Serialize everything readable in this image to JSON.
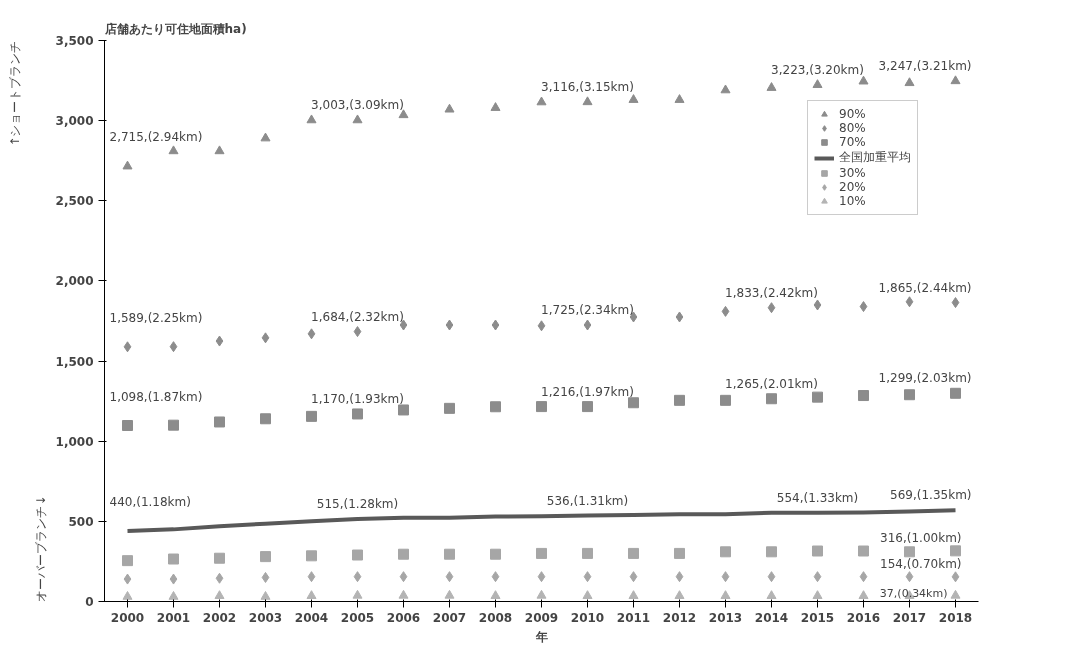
{
  "chart_data": {
    "type": "scatter",
    "title": "店舗あたり可住地面積ha)",
    "xlabel": "年",
    "x": [
      2000,
      2001,
      2002,
      2003,
      2004,
      2005,
      2006,
      2007,
      2008,
      2009,
      2010,
      2011,
      2012,
      2013,
      2014,
      2015,
      2016,
      2017,
      2018
    ],
    "xlim": [
      1999.5,
      2018.5
    ],
    "xticks": [
      2000,
      2001,
      2002,
      2003,
      2004,
      2005,
      2006,
      2007,
      2008,
      2009,
      2010,
      2011,
      2012,
      2013,
      2014,
      2015,
      2016,
      2017,
      2018
    ],
    "ylim": [
      0,
      3500
    ],
    "yticks": [
      0,
      500,
      {
        "value": 1000,
        "label": "1,000"
      },
      {
        "value": 1500,
        "label": "1,500"
      },
      {
        "value": 2000,
        "label": "2,000"
      },
      {
        "value": 2500,
        "label": "2,500"
      },
      {
        "value": 3000,
        "label": "3,000"
      },
      {
        "value": 3500,
        "label": "3,500"
      }
    ],
    "grid": false,
    "legend": "top right",
    "series": [
      {
        "name": "90%",
        "color": "#8c8c8c",
        "marker": "triangle",
        "values": [
          2715,
          2810,
          2810,
          2890,
          3003,
          3003,
          3035,
          3070,
          3080,
          3115,
          3116,
          3130,
          3130,
          3190,
          3205,
          3223,
          3245,
          3235,
          3247
        ]
      },
      {
        "name": "80%",
        "color": "#8c8c8c",
        "marker": "diamond",
        "values": [
          1589,
          1590,
          1625,
          1645,
          1670,
          1684,
          1725,
          1725,
          1725,
          1720,
          1725,
          1775,
          1775,
          1810,
          1833,
          1850,
          1840,
          1870,
          1865
        ]
      },
      {
        "name": "70%",
        "color": "#8c8c8c",
        "marker": "square",
        "values": [
          1098,
          1100,
          1120,
          1140,
          1155,
          1170,
          1195,
          1205,
          1215,
          1216,
          1216,
          1240,
          1255,
          1255,
          1265,
          1275,
          1285,
          1290,
          1299
        ]
      },
      {
        "name": "全国加重平均",
        "color": "#595959",
        "type": "line",
        "values": [
          440,
          450,
          470,
          485,
          500,
          515,
          522,
          522,
          530,
          532,
          536,
          540,
          545,
          545,
          554,
          554,
          555,
          562,
          569
        ]
      },
      {
        "name": "30%",
        "color": "#a6a6a6",
        "marker": "square",
        "values": [
          255,
          265,
          270,
          280,
          285,
          290,
          295,
          295,
          295,
          300,
          300,
          300,
          300,
          310,
          310,
          315,
          315,
          310,
          316
        ]
      },
      {
        "name": "20%",
        "color": "#a6a6a6",
        "marker": "diamond",
        "values": [
          140,
          140,
          145,
          150,
          155,
          155,
          155,
          155,
          155,
          155,
          155,
          155,
          155,
          155,
          155,
          155,
          155,
          155,
          154
        ]
      },
      {
        "name": "10%",
        "color": "#b4b4b4",
        "marker": "triangle",
        "values": [
          30,
          30,
          35,
          30,
          35,
          37,
          37,
          37,
          35,
          37,
          35,
          35,
          35,
          35,
          35,
          35,
          35,
          35,
          37
        ]
      }
    ],
    "annotations": [
      {
        "text": "2,715,(2.94km)",
        "x": 2000,
        "y": 2715
      },
      {
        "text": "3,003,(3.09km)",
        "x": 2005,
        "y": 3003
      },
      {
        "text": "3,116,(3.15km)",
        "x": 2010,
        "y": 3116
      },
      {
        "text": "3,223,(3.20km)",
        "x": 2015,
        "y": 3223
      },
      {
        "text": "3,247,(3.21km)",
        "x": 2018,
        "y": 3247
      },
      {
        "text": "1,589,(2.25km)",
        "x": 2000,
        "y": 1589
      },
      {
        "text": "1,684,(2.32km)",
        "x": 2005,
        "y": 1684
      },
      {
        "text": "1,725,(2.34km)",
        "x": 2010,
        "y": 1725
      },
      {
        "text": "1,833,(2.42km)",
        "x": 2014,
        "y": 1833
      },
      {
        "text": "1,865,(2.44km)",
        "x": 2018,
        "y": 1865
      },
      {
        "text": "1,098,(1.87km)",
        "x": 2000,
        "y": 1098
      },
      {
        "text": "1,170,(1.93km)",
        "x": 2005,
        "y": 1170
      },
      {
        "text": "1,216,(1.97km)",
        "x": 2010,
        "y": 1216
      },
      {
        "text": "1,265,(2.01km)",
        "x": 2014,
        "y": 1265
      },
      {
        "text": "1,299,(2.03km)",
        "x": 2018,
        "y": 1299
      },
      {
        "text": "440,(1.18km)",
        "x": 2000,
        "y": 440
      },
      {
        "text": "515,(1.28km)",
        "x": 2005,
        "y": 515
      },
      {
        "text": "536,(1.31km)",
        "x": 2010,
        "y": 536
      },
      {
        "text": "554,(1.33km)",
        "x": 2015,
        "y": 554
      },
      {
        "text": "569,(1.35km)",
        "x": 2018,
        "y": 569
      },
      {
        "text": "316,(1.00km)",
        "x": 2018,
        "y": 316
      },
      {
        "text": "154,(0.70km)",
        "x": 2018,
        "y": 154
      },
      {
        "text": "37,(0.34km)",
        "x": 2018,
        "y": 37
      },
      "↑ショートブランチ",
      "オーバーブランチ↓"
    ]
  }
}
